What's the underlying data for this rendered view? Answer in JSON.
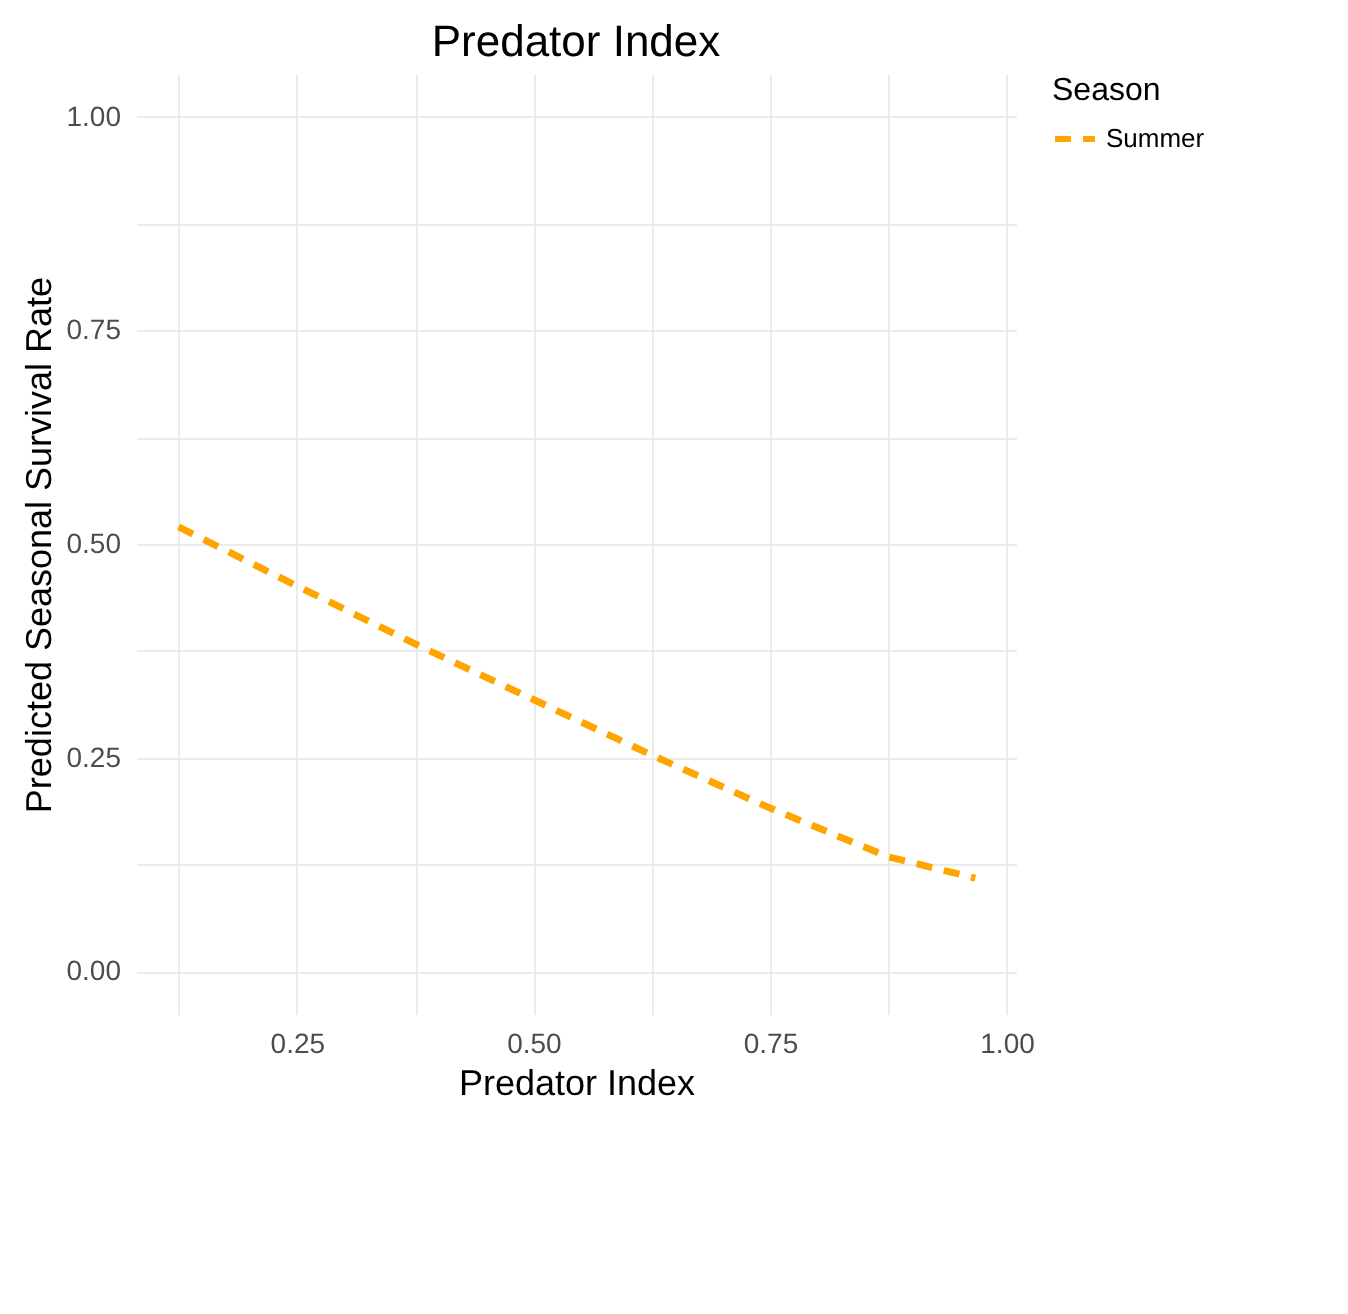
{
  "chart_data": {
    "type": "line",
    "title": "Predator Index",
    "xlabel": "Predator Index",
    "ylabel": "Predicted Seasonal Survival Rate",
    "legend_title": "Season",
    "x": [
      0.125,
      0.25,
      0.375,
      0.5,
      0.625,
      0.75,
      0.875,
      0.967
    ],
    "series": [
      {
        "name": "Summer",
        "color": "#ffa500",
        "values": [
          0.52,
          0.451,
          0.383,
          0.318,
          0.253,
          0.191,
          0.134,
          0.109
        ]
      }
    ],
    "xlim": [
      0.08,
      1.01
    ],
    "xticks": [
      {
        "value": 0.125,
        "label": null
      },
      0.25,
      {
        "value": 0.375,
        "label": null
      },
      {
        "value": 0.5,
        "label": "0.50"
      },
      {
        "value": 0.625,
        "label": null
      },
      0.75,
      {
        "value": 0.875,
        "label": null
      },
      {
        "value": 1,
        "label": "1.00"
      }
    ],
    "ylim": [
      -0.05,
      1.05
    ],
    "yticks": [
      {
        "value": 0,
        "label": "0.00"
      },
      {
        "value": 0.125,
        "label": null
      },
      0.25,
      {
        "value": 0.375,
        "label": null
      },
      {
        "value": 0.5,
        "label": "0.50"
      },
      {
        "value": 0.625,
        "label": null
      },
      0.75,
      {
        "value": 0.875,
        "label": null
      },
      {
        "value": 1,
        "label": "1.00"
      }
    ],
    "grid": true,
    "legend": "top right",
    "line_style": "dashed"
  }
}
